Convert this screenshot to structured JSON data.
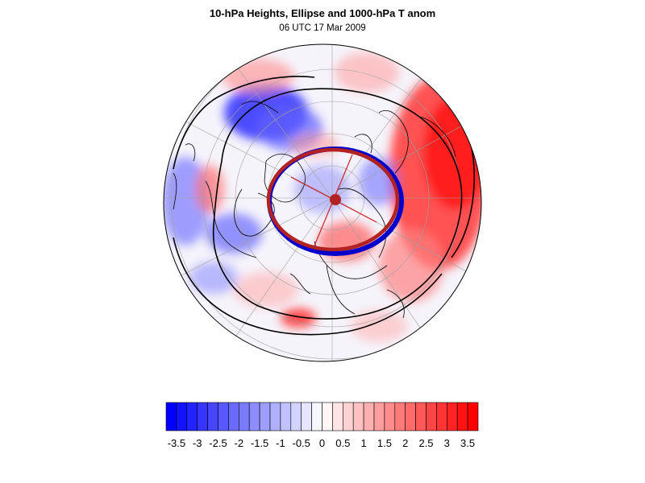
{
  "title": "10-hPa Heights, Ellipse and 1000-hPa T anom",
  "subtitle": "06 UTC 17 Mar 2009",
  "colorbar": {
    "labels": [
      "-3.5",
      "-3",
      "-2.5",
      "-2",
      "-1.5",
      "-1",
      "-0.5",
      "0",
      "0.5",
      "1",
      "1.5",
      "2",
      "2.5",
      "3",
      "3.5"
    ],
    "min": -3.5,
    "max": 3.5,
    "negative_color": "#0000ff",
    "positive_color": "#ff0000"
  },
  "map": {
    "projection": "polar-stereographic",
    "hemisphere": "north",
    "ellipse_color": "#b22222",
    "ellipse_shadow_color": "#0000cc",
    "contour_color": "#000000",
    "graticule_color": "#999999"
  }
}
